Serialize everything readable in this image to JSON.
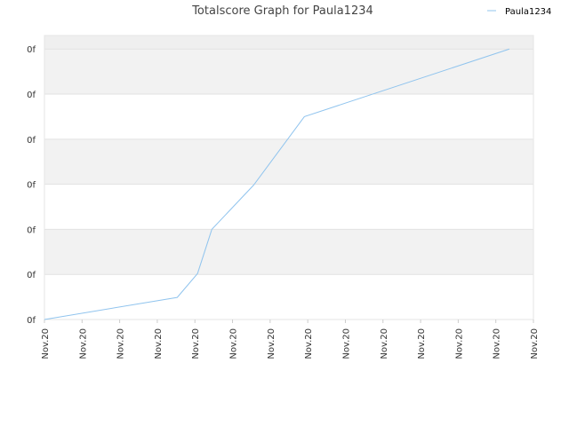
{
  "chart_data": {
    "type": "line",
    "title": "Totalscore Graph for Paula1234",
    "x": [
      0,
      3.53,
      4.07,
      4.45,
      5.56,
      6.91,
      12.36
    ],
    "series": [
      {
        "name": "Paula1234",
        "color": "#90c4ee",
        "values": [
          0,
          0.49,
          1.02,
          2.0,
          2.98,
          4.5,
          6.0
        ]
      }
    ],
    "xlim": [
      0,
      13
    ],
    "ylim": [
      0,
      6.3
    ],
    "xticks": [
      {
        "value": 0,
        "label": "Nov.20"
      },
      {
        "value": 1,
        "label": "Nov.20"
      },
      {
        "value": 2,
        "label": "Nov.20"
      },
      {
        "value": 3,
        "label": "Nov.20"
      },
      {
        "value": 4,
        "label": "Nov.20"
      },
      {
        "value": 5,
        "label": "Nov.20"
      },
      {
        "value": 6,
        "label": "Nov.20"
      },
      {
        "value": 7,
        "label": "Nov.20"
      },
      {
        "value": 8,
        "label": "Nov.20"
      },
      {
        "value": 9,
        "label": "Nov.20"
      },
      {
        "value": 10,
        "label": "Nov.20"
      },
      {
        "value": 11,
        "label": "Nov.20"
      },
      {
        "value": 12,
        "label": "Nov.20"
      },
      {
        "value": 13,
        "label": "Nov.20"
      }
    ],
    "yticks": [
      {
        "value": 0,
        "label": "0f"
      },
      {
        "value": 1,
        "label": "0f"
      },
      {
        "value": 2,
        "label": "0f"
      },
      {
        "value": 3,
        "label": "0f"
      },
      {
        "value": 4,
        "label": "0f"
      },
      {
        "value": 5,
        "label": "0f"
      },
      {
        "value": 6,
        "label": "0f"
      }
    ],
    "grid": true,
    "legend": "top-right"
  }
}
